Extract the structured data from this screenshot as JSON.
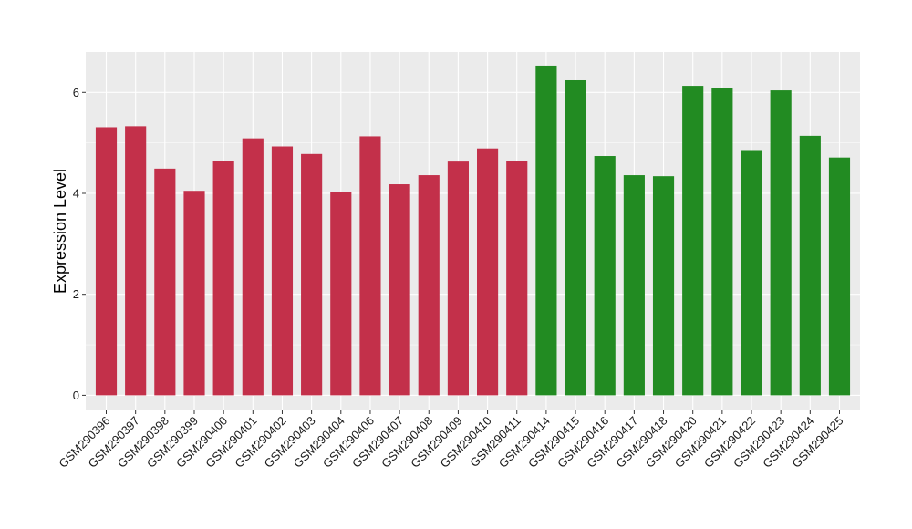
{
  "chart_data": {
    "type": "bar",
    "ylabel": "Expression Level",
    "xlabel": "",
    "ylim": [
      -0.3,
      6.8
    ],
    "yticks": [
      0,
      2,
      4,
      6
    ],
    "grid": true,
    "categories": [
      "GSM290396",
      "GSM290397",
      "GSM290398",
      "GSM290399",
      "GSM290400",
      "GSM290401",
      "GSM290402",
      "GSM290403",
      "GSM290404",
      "GSM290406",
      "GSM290407",
      "GSM290408",
      "GSM290409",
      "GSM290410",
      "GSM290411",
      "GSM290414",
      "GSM290415",
      "GSM290416",
      "GSM290417",
      "GSM290418",
      "GSM290420",
      "GSM290421",
      "GSM290422",
      "GSM290423",
      "GSM290424",
      "GSM290425"
    ],
    "values": [
      5.31,
      5.33,
      4.49,
      4.05,
      4.65,
      5.09,
      4.93,
      4.78,
      4.03,
      5.13,
      4.18,
      4.36,
      4.63,
      4.89,
      4.65,
      6.53,
      6.24,
      4.74,
      4.36,
      4.34,
      6.13,
      6.09,
      4.84,
      6.04,
      5.14,
      4.71
    ],
    "groups": [
      "a",
      "a",
      "a",
      "a",
      "a",
      "a",
      "a",
      "a",
      "a",
      "a",
      "a",
      "a",
      "a",
      "a",
      "a",
      "b",
      "b",
      "b",
      "b",
      "b",
      "b",
      "b",
      "b",
      "b",
      "b",
      "b"
    ],
    "colors": {
      "a": "#C3304A",
      "b": "#228B22"
    },
    "panel_background": "#EBEBEB",
    "gridline_color": "#FFFFFF"
  }
}
